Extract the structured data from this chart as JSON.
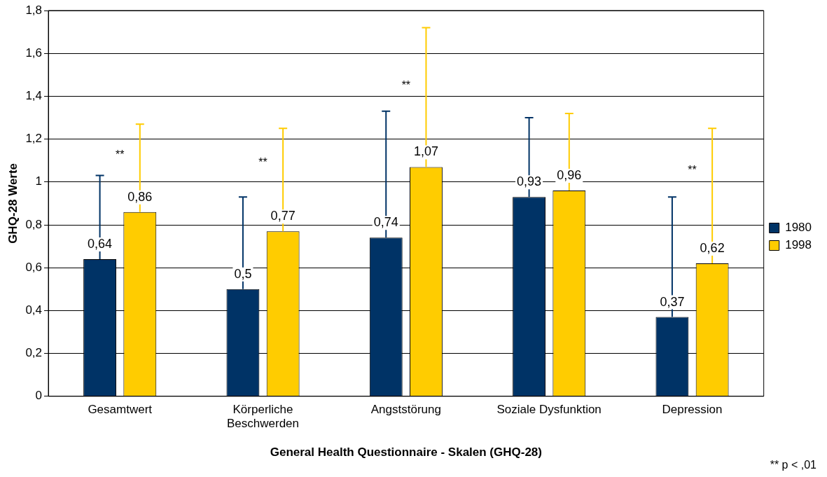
{
  "chart_data": {
    "type": "bar",
    "xlabel": "General Health Questionnaire - Skalen (GHQ-28)",
    "ylabel": "GHQ-28 Werte",
    "categories": [
      "Gesamtwert",
      "Körperliche Beschwerden",
      "Angststörung",
      "Soziale Dysfunktion",
      "Depression"
    ],
    "series": [
      {
        "name": "1980",
        "color": "#003366",
        "values": [
          0.64,
          0.5,
          0.74,
          0.93,
          0.37
        ],
        "value_labels": [
          "0,64",
          "0,5",
          "0,74",
          "0,93",
          "0,37"
        ],
        "errors": [
          [
            0.64,
            1.03
          ],
          [
            0.5,
            0.93
          ],
          [
            0.74,
            1.33
          ],
          [
            0.93,
            1.3
          ],
          [
            0.37,
            0.93
          ]
        ]
      },
      {
        "name": "1998",
        "color": "#ffcc00",
        "values": [
          0.86,
          0.77,
          1.07,
          0.96,
          0.62
        ],
        "value_labels": [
          "0,86",
          "0,77",
          "1,07",
          "0,96",
          "0,62"
        ],
        "errors": [
          [
            0.86,
            1.27
          ],
          [
            0.77,
            1.25
          ],
          [
            1.07,
            1.72
          ],
          [
            0.96,
            1.32
          ],
          [
            0.62,
            1.25
          ]
        ]
      }
    ],
    "ylim": [
      0,
      1.8
    ],
    "yticks": [
      0,
      {
        "value": 0.2,
        "label": "0,2"
      },
      {
        "value": 0.4,
        "label": "0,4"
      },
      {
        "value": 0.6,
        "label": "0,6"
      },
      {
        "value": 0.8,
        "label": "0,8"
      },
      1,
      {
        "value": 1.2,
        "label": "1,2"
      },
      {
        "value": 1.4,
        "label": "1,4"
      },
      {
        "value": 1.6,
        "label": "1,6"
      },
      {
        "value": 1.8,
        "label": "1,8"
      }
    ],
    "grid": "y",
    "legend": "right",
    "annotations": [
      "**",
      "**",
      "**",
      "**",
      "** p < ,01"
    ]
  }
}
